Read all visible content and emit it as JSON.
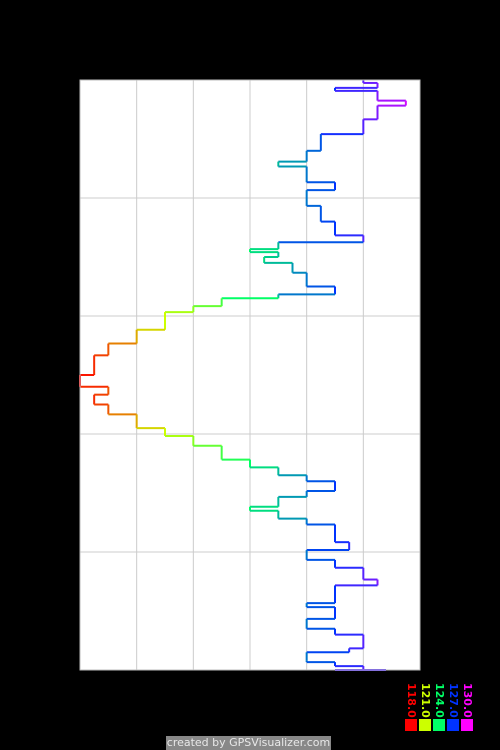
{
  "chart_data": {
    "type": "line",
    "title": "",
    "xlabel": "",
    "ylabel": "",
    "xlim": [
      118,
      130
    ],
    "grid": true,
    "color_scale": [
      {
        "value": "118.0",
        "color": "#ff0000"
      },
      {
        "value": "121.0",
        "color": "#ccff00"
      },
      {
        "value": "124.0",
        "color": "#00ff66"
      },
      {
        "value": "127.0",
        "color": "#0033ff"
      },
      {
        "value": "130.0",
        "color": "#ff00ff"
      }
    ],
    "series": [
      {
        "points": [
          [
            128,
            0
          ],
          [
            128.5,
            3
          ],
          [
            127,
            8
          ],
          [
            128.5,
            11
          ],
          [
            129.5,
            21
          ],
          [
            128.5,
            26
          ],
          [
            128,
            40
          ],
          [
            126.5,
            55
          ],
          [
            126,
            72
          ],
          [
            125,
            83
          ],
          [
            126,
            88
          ],
          [
            127,
            104
          ],
          [
            126,
            112
          ],
          [
            126.5,
            128
          ],
          [
            127,
            144
          ],
          [
            128,
            158
          ],
          [
            125,
            165
          ],
          [
            124,
            172
          ],
          [
            125,
            175
          ],
          [
            124.5,
            180
          ],
          [
            125.5,
            186
          ],
          [
            126,
            196
          ],
          [
            127,
            210
          ],
          [
            125,
            218
          ],
          [
            123,
            222
          ],
          [
            122,
            230
          ],
          [
            121,
            236
          ],
          [
            120,
            254
          ],
          [
            119,
            268
          ],
          [
            118.5,
            280
          ],
          [
            118,
            300
          ],
          [
            119,
            312
          ],
          [
            118.5,
            320
          ],
          [
            119,
            330
          ],
          [
            120,
            340
          ],
          [
            121,
            354
          ],
          [
            122,
            362
          ],
          [
            123,
            372
          ],
          [
            124,
            386
          ],
          [
            125,
            394
          ],
          [
            126,
            402
          ],
          [
            127,
            408
          ],
          [
            126,
            418
          ],
          [
            125,
            424
          ],
          [
            124,
            434
          ],
          [
            125,
            438
          ],
          [
            126,
            446
          ],
          [
            127,
            452
          ],
          [
            127.5,
            470
          ],
          [
            126,
            478
          ],
          [
            127,
            488
          ],
          [
            128,
            496
          ],
          [
            128.5,
            508
          ],
          [
            127,
            514
          ],
          [
            126,
            532
          ],
          [
            127,
            536
          ],
          [
            126,
            548
          ],
          [
            127,
            558
          ],
          [
            128,
            564
          ],
          [
            127.5,
            578
          ],
          [
            126,
            582
          ],
          [
            126,
            590
          ],
          [
            127,
            592
          ],
          [
            128,
            596
          ],
          [
            128.8,
            600
          ],
          [
            127,
            600
          ]
        ]
      }
    ],
    "credit": "created by GPSVisualizer.com"
  }
}
